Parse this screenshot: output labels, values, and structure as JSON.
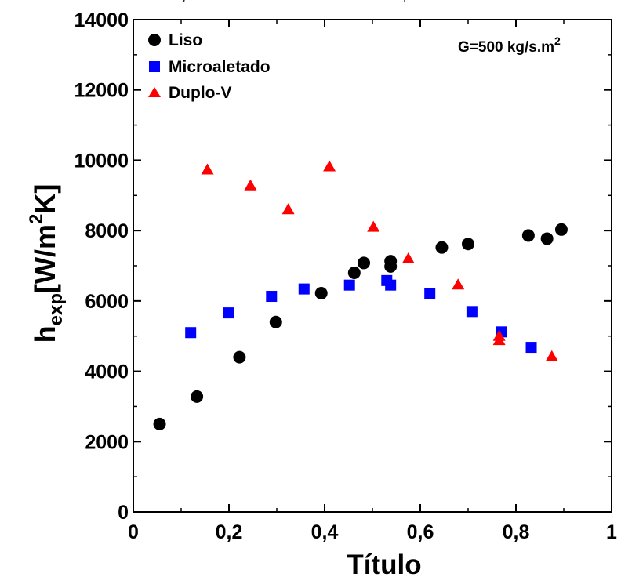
{
  "caption_fragment": "çã",
  "caption_fragment2": "p",
  "chart_data": {
    "type": "scatter",
    "xlabel": "Título",
    "ylabel": {
      "main": "h",
      "sub": "exp",
      "mid": "[W/m",
      "sup": "2",
      "end": "K]"
    },
    "xlim": [
      0,
      1
    ],
    "ylim": [
      0,
      14000
    ],
    "x_ticks": [
      "0",
      "0,2",
      "0,4",
      "0,6",
      "0,8",
      "1"
    ],
    "y_ticks": [
      "0",
      "2000",
      "4000",
      "6000",
      "8000",
      "10000",
      "12000",
      "14000"
    ],
    "annotation": {
      "text": "G=500 kg/s.m",
      "sup": "2"
    },
    "legend_position": "top-left",
    "series": [
      {
        "name": "Liso",
        "marker": "circle",
        "color": "#000000",
        "points": [
          [
            0.055,
            2500
          ],
          [
            0.133,
            3280
          ],
          [
            0.222,
            4400
          ],
          [
            0.298,
            5400
          ],
          [
            0.393,
            6220
          ],
          [
            0.462,
            6800
          ],
          [
            0.482,
            7080
          ],
          [
            0.538,
            6980
          ],
          [
            0.538,
            7130
          ],
          [
            0.645,
            7520
          ],
          [
            0.7,
            7620
          ],
          [
            0.826,
            7860
          ],
          [
            0.865,
            7770
          ],
          [
            0.895,
            8030
          ]
        ]
      },
      {
        "name": "Microaletado",
        "marker": "square",
        "color": "#0000ff",
        "points": [
          [
            0.12,
            5100
          ],
          [
            0.2,
            5660
          ],
          [
            0.289,
            6130
          ],
          [
            0.357,
            6340
          ],
          [
            0.452,
            6450
          ],
          [
            0.53,
            6580
          ],
          [
            0.538,
            6450
          ],
          [
            0.62,
            6210
          ],
          [
            0.708,
            5700
          ],
          [
            0.77,
            5120
          ],
          [
            0.832,
            4680
          ]
        ]
      },
      {
        "name": "Duplo-V",
        "marker": "triangle",
        "color": "#ff0000",
        "points": [
          [
            0.155,
            9730
          ],
          [
            0.245,
            9280
          ],
          [
            0.324,
            8600
          ],
          [
            0.41,
            9820
          ],
          [
            0.502,
            8100
          ],
          [
            0.575,
            7200
          ],
          [
            0.679,
            6460
          ],
          [
            0.765,
            5000
          ],
          [
            0.765,
            4880
          ],
          [
            0.875,
            4420
          ]
        ]
      }
    ]
  }
}
